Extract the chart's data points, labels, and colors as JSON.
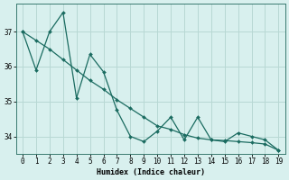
{
  "xlabel": "Humidex (Indice chaleur)",
  "background_color": "#d8f0ee",
  "grid_color": "#b8d8d4",
  "line_color": "#1a6b60",
  "x": [
    0,
    1,
    2,
    3,
    4,
    5,
    6,
    7,
    8,
    9,
    10,
    11,
    12,
    13,
    14,
    15,
    16,
    17,
    18,
    19
  ],
  "y_jagged": [
    37.0,
    35.9,
    37.0,
    37.55,
    35.1,
    36.35,
    35.85,
    34.75,
    34.0,
    33.85,
    34.15,
    34.55,
    33.9,
    34.55,
    33.9,
    33.85,
    34.1,
    34.0,
    33.9,
    33.6
  ],
  "y_smooth": [
    37.0,
    36.75,
    36.5,
    36.2,
    35.9,
    35.6,
    35.35,
    35.05,
    34.8,
    34.55,
    34.3,
    34.2,
    34.05,
    33.95,
    33.9,
    33.88,
    33.85,
    33.82,
    33.78,
    33.6
  ],
  "ylim": [
    33.5,
    37.8
  ],
  "yticks": [
    34,
    35,
    36,
    37
  ],
  "xticks": [
    0,
    1,
    2,
    3,
    4,
    5,
    6,
    7,
    8,
    9,
    10,
    11,
    12,
    13,
    14,
    15,
    16,
    17,
    18,
    19
  ],
  "tick_labelsize": 5.5,
  "xlabel_fontsize": 6.0
}
